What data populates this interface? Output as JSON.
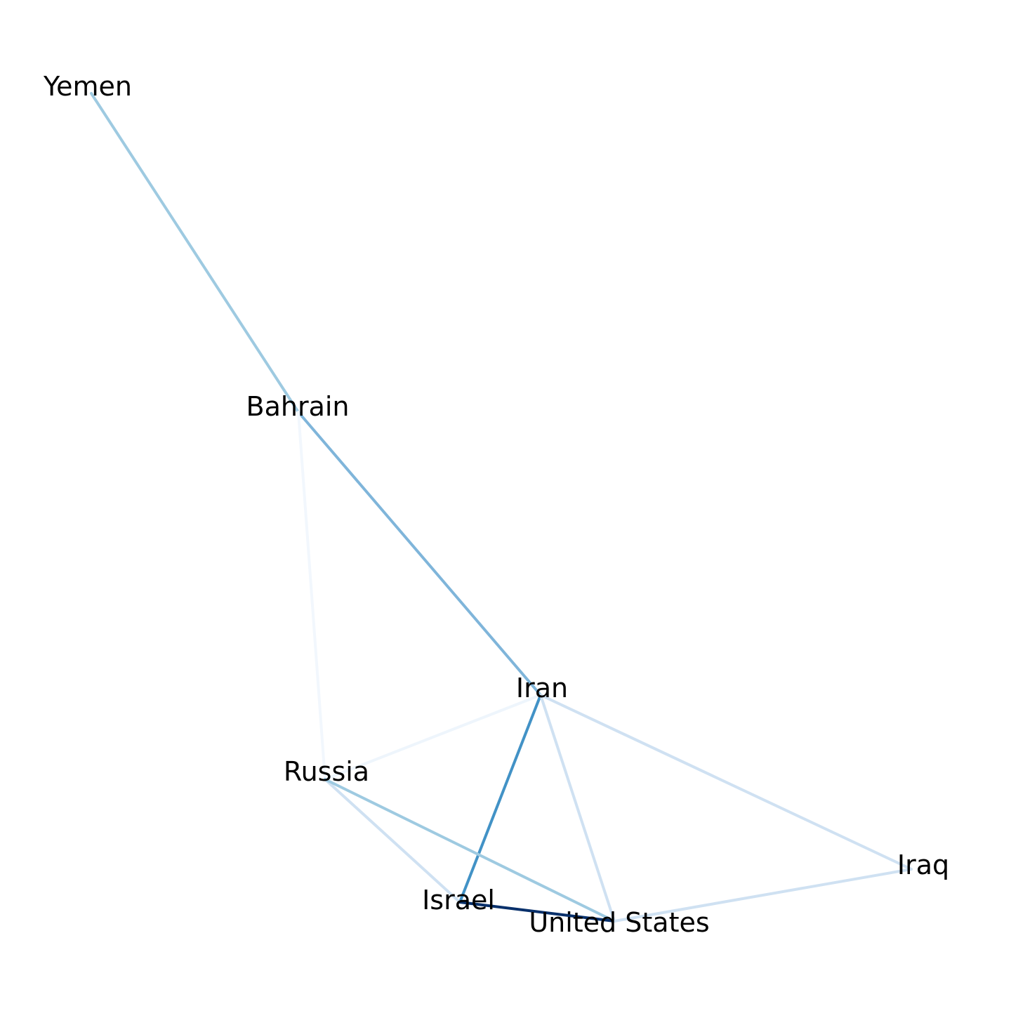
{
  "nodes": [
    {
      "id": "yemen",
      "label": "Yemen"
    },
    {
      "id": "bahrain",
      "label": "Bahrain"
    },
    {
      "id": "iran",
      "label": "Iran"
    },
    {
      "id": "russia",
      "label": "Russia"
    },
    {
      "id": "iraq",
      "label": "Iraq"
    },
    {
      "id": "israel",
      "label": "Israel"
    },
    {
      "id": "united_states",
      "label": "United States"
    }
  ],
  "edges": [
    {
      "source": "yemen",
      "target": "bahrain",
      "color": "#9ecae1"
    },
    {
      "source": "bahrain",
      "target": "iran",
      "color": "#7fb5da"
    },
    {
      "source": "bahrain",
      "target": "russia",
      "color": "#f2f7fd"
    },
    {
      "source": "iran",
      "target": "russia",
      "color": "#eef5fc"
    },
    {
      "source": "iran",
      "target": "israel",
      "color": "#4292c6"
    },
    {
      "source": "iran",
      "target": "united_states",
      "color": "#cfe1f2"
    },
    {
      "source": "iran",
      "target": "iraq",
      "color": "#cfe1f2"
    },
    {
      "source": "russia",
      "target": "israel",
      "color": "#cfe1f2"
    },
    {
      "source": "russia",
      "target": "united_states",
      "color": "#9ecae1"
    },
    {
      "source": "israel",
      "target": "united_states",
      "color": "#08306b"
    },
    {
      "source": "iraq",
      "target": "united_states",
      "color": "#cfe1f2"
    }
  ]
}
